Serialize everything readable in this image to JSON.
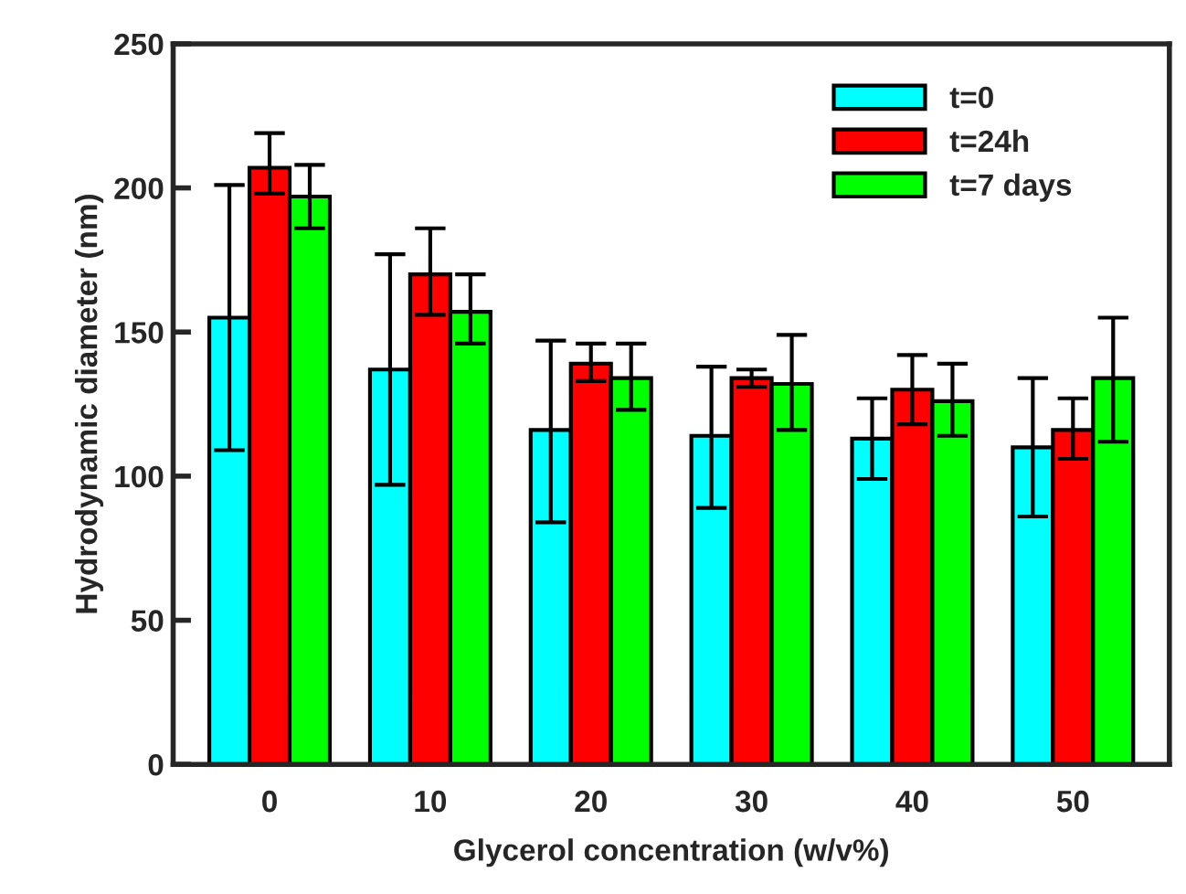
{
  "chart_data": {
    "type": "bar",
    "xlabel": "Glycerol concentration (w/v%)",
    "ylabel": "Hydrodynamic diameter (nm)",
    "categories": [
      "0",
      "10",
      "20",
      "30",
      "40",
      "50"
    ],
    "series": [
      {
        "name": "t=0",
        "color": "#00ffff",
        "values": [
          155,
          137,
          116,
          114,
          113,
          110
        ],
        "errors": [
          [
            109,
            201
          ],
          [
            97,
            177
          ],
          [
            84,
            147
          ],
          [
            89,
            138
          ],
          [
            99,
            127
          ],
          [
            86,
            134
          ]
        ]
      },
      {
        "name": "t=24h",
        "color": "#ff0000",
        "values": [
          207,
          170,
          139,
          134,
          130,
          116
        ],
        "errors": [
          [
            198,
            219
          ],
          [
            156,
            186
          ],
          [
            133,
            146
          ],
          [
            131,
            137
          ],
          [
            118,
            142
          ],
          [
            106,
            127
          ]
        ]
      },
      {
        "name": "t=7 days",
        "color": "#00ff00",
        "values": [
          197,
          157,
          134,
          132,
          126,
          134
        ],
        "errors": [
          [
            186,
            208
          ],
          [
            146,
            170
          ],
          [
            123,
            146
          ],
          [
            116,
            149
          ],
          [
            114,
            139
          ],
          [
            112,
            155
          ]
        ]
      }
    ],
    "ylim": [
      0,
      250
    ],
    "yticks": [
      0,
      50,
      100,
      150,
      200,
      250
    ],
    "grid": false,
    "legend": "top right"
  }
}
